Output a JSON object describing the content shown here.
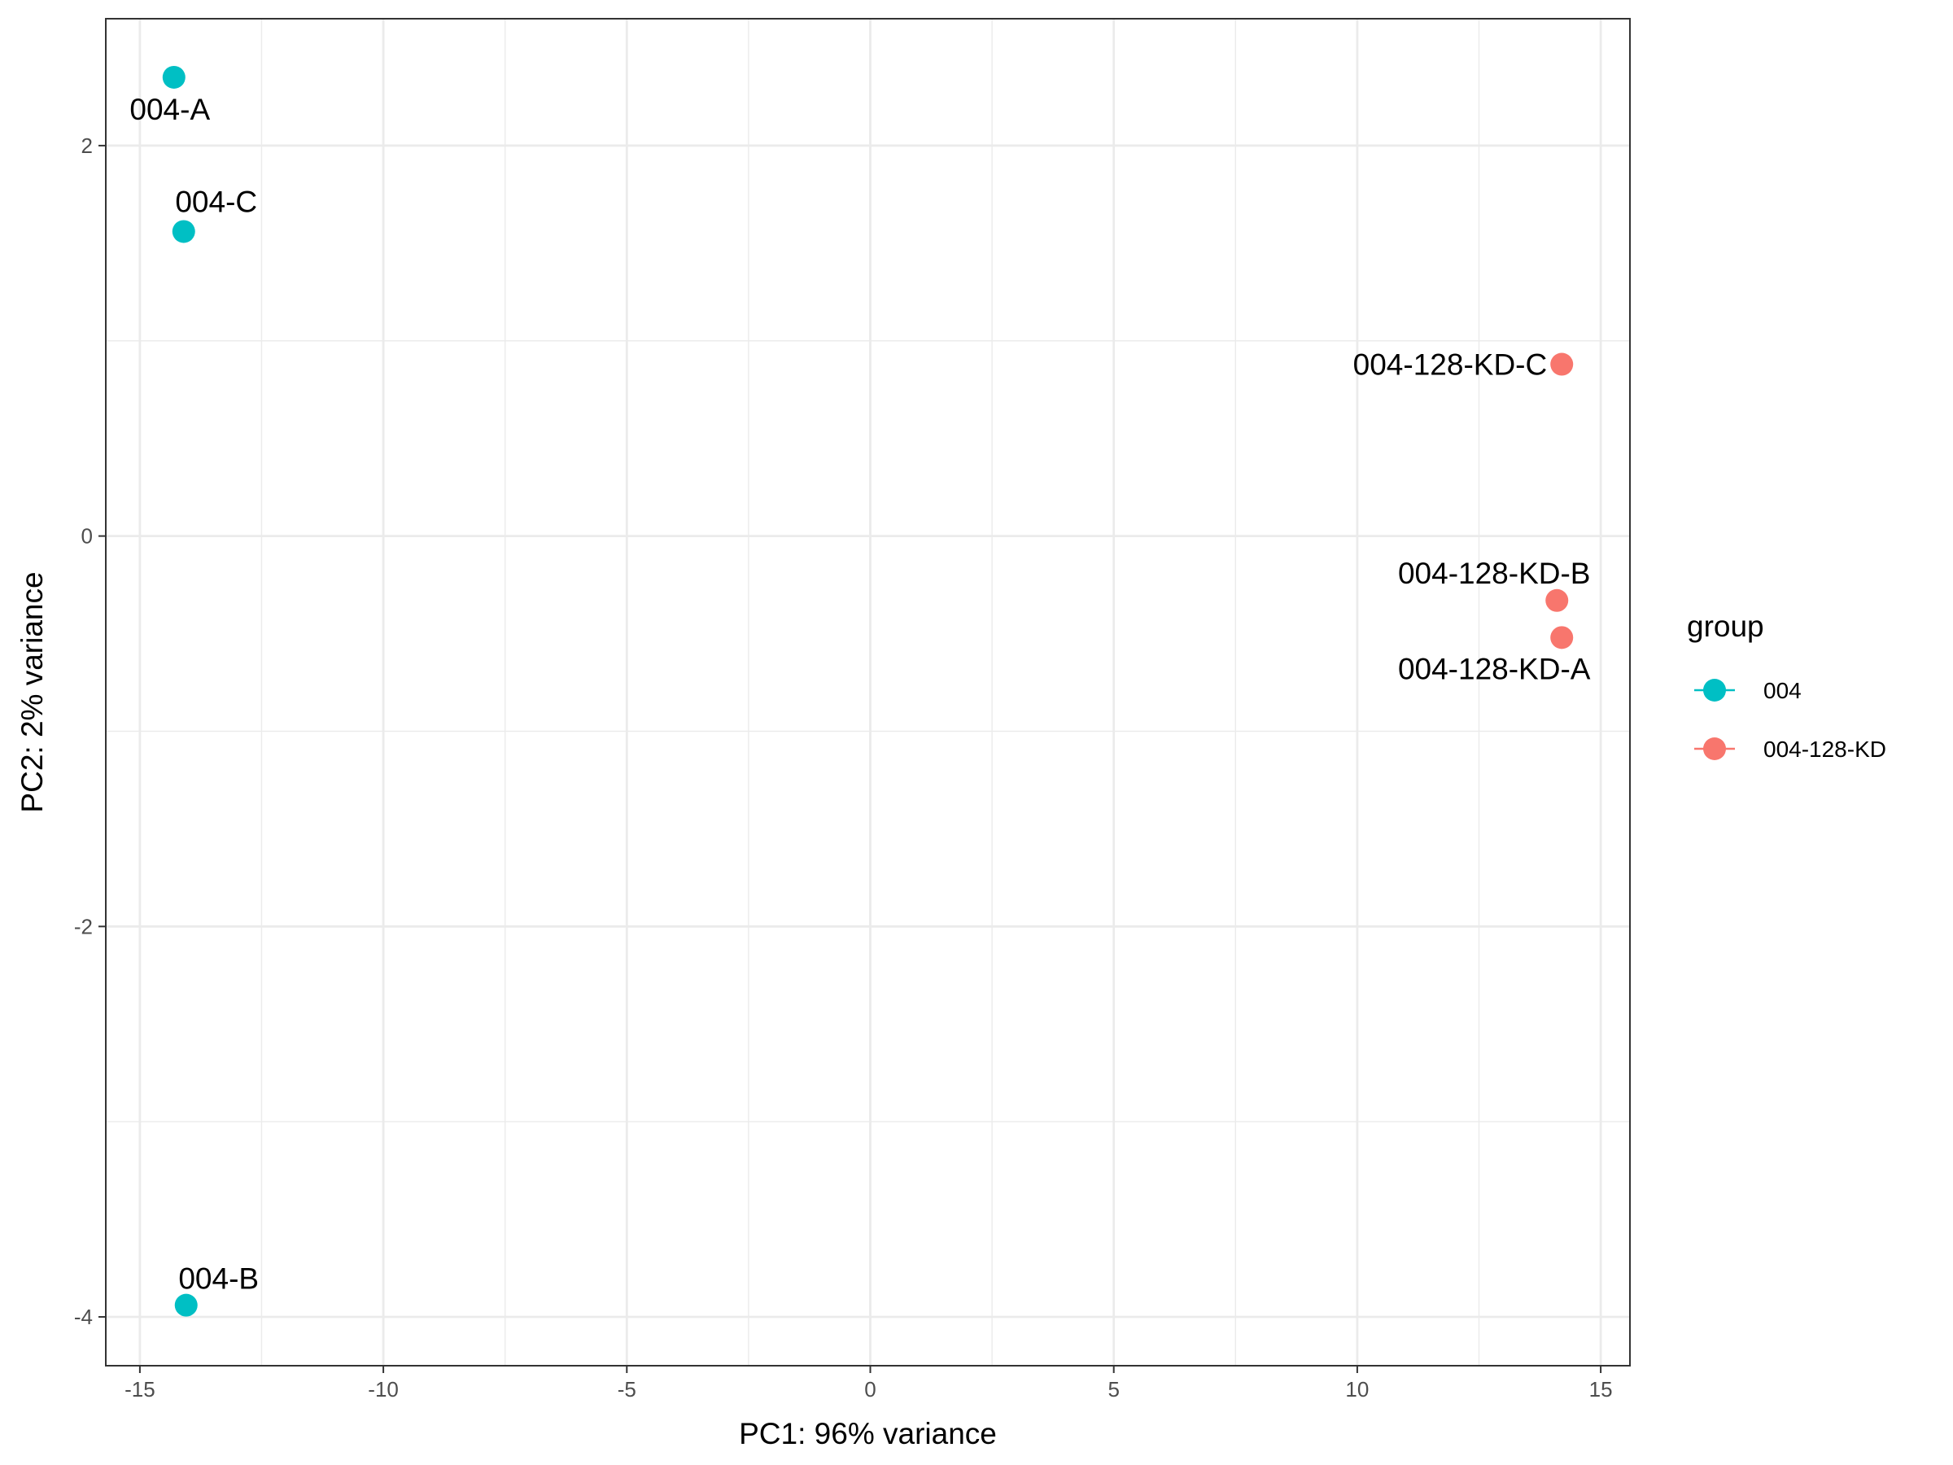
{
  "chart_data": {
    "type": "scatter",
    "title": "",
    "xlabel": "PC1: 96% variance",
    "ylabel": "PC2: 2% variance",
    "xlim": [
      -15.7,
      15.6
    ],
    "ylim": [
      -4.25,
      2.65
    ],
    "xticks": [
      -15,
      -10,
      -5,
      0,
      5,
      10,
      15
    ],
    "yticks": [
      2,
      0,
      -2,
      -4
    ],
    "xtick_labels": [
      "-15",
      "-10",
      "-5",
      "0",
      "5",
      "10",
      "15"
    ],
    "ytick_labels": [
      "2",
      "0",
      "-2",
      "-4"
    ],
    "grid": true,
    "legend": {
      "title": "group",
      "placement": "right",
      "entries": [
        {
          "label": "004",
          "color": "#00BFC4"
        },
        {
          "label": "004-128-KD",
          "color": "#F8766D"
        }
      ]
    },
    "series": [
      {
        "name": "004",
        "color": "#00BFC4",
        "points": [
          {
            "x": -14.3,
            "y": 2.35,
            "label": "004-A"
          },
          {
            "x": -14.1,
            "y": 1.56,
            "label": "004-C"
          },
          {
            "x": -14.05,
            "y": -3.94,
            "label": "004-B"
          }
        ]
      },
      {
        "name": "004-128-KD",
        "color": "#F8766D",
        "points": [
          {
            "x": 14.2,
            "y": 0.88,
            "label": "004-128-KD-C"
          },
          {
            "x": 14.1,
            "y": -0.33,
            "label": "004-128-KD-B"
          },
          {
            "x": 14.2,
            "y": -0.52,
            "label": "004-128-KD-A"
          }
        ]
      }
    ]
  }
}
